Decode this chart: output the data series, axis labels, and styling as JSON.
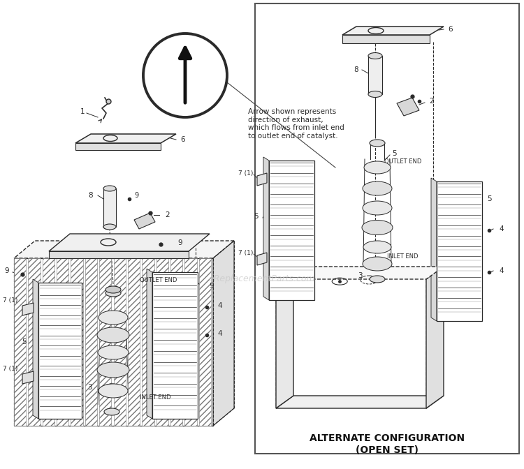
{
  "bg_color": "#ffffff",
  "fig_width": 7.5,
  "fig_height": 6.72,
  "dpi": 100,
  "line_color": "#2a2a2a",
  "text_color": "#2a2a2a",
  "watermark": "eReplacementParts.com",
  "watermark_color": "#c8c8c8",
  "alt_config_label_line1": "ALTERNATE CONFIGURATION",
  "alt_config_label_line2": "(OPEN SET)",
  "arrow_text": "Arrow shown represents\ndirection of exhaust,\nwhich flows from inlet end\nto outlet end of catalyst."
}
